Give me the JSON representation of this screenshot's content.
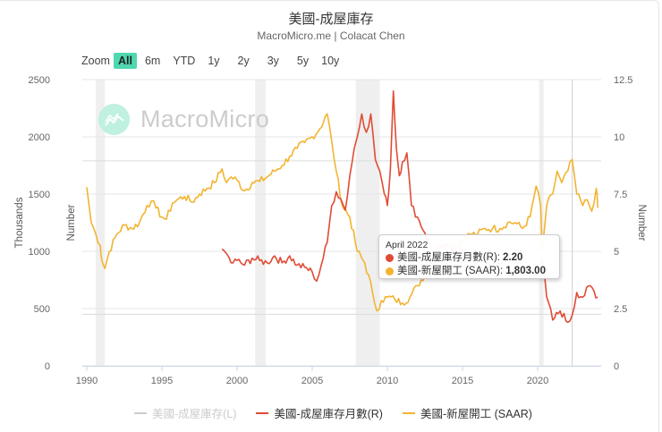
{
  "header": {
    "title": "美國-成屋庫存",
    "subtitle": "MacroMicro.me | Colacat Chen"
  },
  "zoom_bar": {
    "label": "Zoom",
    "buttons": [
      {
        "label": "All",
        "active": true
      },
      {
        "label": "6m",
        "active": false
      },
      {
        "label": "YTD",
        "active": false
      },
      {
        "label": "1y",
        "active": false
      },
      {
        "label": "2y",
        "active": false
      },
      {
        "label": "3y",
        "active": false
      },
      {
        "label": "5y",
        "active": false
      },
      {
        "label": "10y",
        "active": false
      }
    ]
  },
  "watermark": {
    "text": "MacroMicro"
  },
  "tooltip": {
    "date": "April 2022",
    "rows": [
      {
        "label": "美國-成屋庫存月數(R):",
        "value": "2.20",
        "color": "#e04b35"
      },
      {
        "label": "美國-新屋開工 (SAAR):",
        "value": "1,803.00",
        "color": "#f2b431"
      }
    ]
  },
  "legend": [
    {
      "label": "美國-成屋庫存(L)",
      "color": "#cccccc",
      "hidden": true
    },
    {
      "label": "美國-成屋庫存月數(R)",
      "color": "#e04b35",
      "hidden": false
    },
    {
      "label": "美國-新屋開工 (SAAR)",
      "color": "#f2b431",
      "hidden": false
    }
  ],
  "chart_data": {
    "type": "line",
    "title": "美國-成屋庫存",
    "subtitle": "MacroMicro.me | Colacat Chen",
    "xlabel": "",
    "x_ticks": [
      "1990",
      "1995",
      "2000",
      "2005",
      "2010",
      "2015",
      "2020"
    ],
    "xlim": [
      1989.9,
      2024.2
    ],
    "left_axis": {
      "title": "Thousands",
      "ticks": [
        "0",
        "500",
        "1000",
        "1500",
        "2000",
        "2500"
      ],
      "ylim": [
        0,
        2500
      ]
    },
    "right_axis": {
      "title": "Number",
      "ticks": [
        "0",
        "2.5",
        "5",
        "7.5",
        "10",
        "12.5"
      ],
      "ylim": [
        0,
        12.5
      ]
    },
    "inner_axis_title": "Number",
    "recession_bands": [
      [
        1990.6,
        1991.2
      ],
      [
        2001.2,
        2001.9
      ],
      [
        2007.9,
        2009.5
      ],
      [
        2020.1,
        2020.3
      ]
    ],
    "crosshair_x": 2022.3,
    "grid": true,
    "legend_position": "bottom",
    "series": [
      {
        "name": "美國-新屋開工 (SAAR)",
        "axis": "left",
        "color": "#f2b431",
        "x": [
          1990.0,
          1990.3,
          1990.6,
          1990.9,
          1991.0,
          1991.2,
          1991.5,
          1992.0,
          1992.5,
          1993.0,
          1993.5,
          1994.0,
          1994.3,
          1994.6,
          1995.0,
          1995.3,
          1995.7,
          1996.0,
          1996.5,
          1997.0,
          1997.5,
          1998.0,
          1998.5,
          1999.0,
          1999.3,
          1999.6,
          2000.0,
          2000.5,
          2001.0,
          2001.5,
          2002.0,
          2002.5,
          2003.0,
          2003.5,
          2004.0,
          2004.5,
          2005.0,
          2005.5,
          2006.0,
          2006.3,
          2006.6,
          2007.0,
          2007.5,
          2008.0,
          2008.5,
          2009.0,
          2009.3,
          2009.6,
          2010.0,
          2010.5,
          2011.0,
          2011.5,
          2012.0,
          2012.5,
          2013.0,
          2013.5,
          2014.0,
          2014.5,
          2015.0,
          2015.5,
          2016.0,
          2016.5,
          2017.0,
          2017.5,
          2018.0,
          2018.5,
          2019.0,
          2019.5,
          2019.9,
          2020.2,
          2020.3,
          2020.6,
          2021.0,
          2021.3,
          2021.6,
          2022.0,
          2022.3,
          2022.6,
          2023.0,
          2023.3,
          2023.6,
          2023.9,
          2024.0
        ],
        "values": [
          1560,
          1250,
          1150,
          1050,
          920,
          850,
          1000,
          1150,
          1230,
          1200,
          1250,
          1400,
          1440,
          1380,
          1300,
          1280,
          1420,
          1450,
          1480,
          1430,
          1500,
          1550,
          1600,
          1720,
          1600,
          1650,
          1620,
          1530,
          1600,
          1610,
          1650,
          1700,
          1750,
          1830,
          1900,
          1950,
          2000,
          2070,
          2200,
          1960,
          1700,
          1400,
          1300,
          1000,
          900,
          650,
          480,
          570,
          600,
          580,
          550,
          600,
          700,
          800,
          900,
          950,
          1000,
          1050,
          1100,
          1150,
          1150,
          1200,
          1200,
          1200,
          1250,
          1250,
          1200,
          1300,
          1570,
          1400,
          1000,
          1400,
          1500,
          1700,
          1600,
          1700,
          1803,
          1500,
          1400,
          1450,
          1350,
          1550,
          1380
        ]
      },
      {
        "name": "美國-成屋庫存月數(R)",
        "axis": "right",
        "color": "#e04b35",
        "x": [
          1999.0,
          1999.3,
          1999.6,
          2000.0,
          2000.5,
          2001.0,
          2001.5,
          2002.0,
          2002.5,
          2003.0,
          2003.5,
          2004.0,
          2004.5,
          2005.0,
          2005.3,
          2005.6,
          2006.0,
          2006.3,
          2006.6,
          2006.9,
          2007.2,
          2007.5,
          2007.8,
          2008.0,
          2008.3,
          2008.6,
          2008.9,
          2009.2,
          2009.5,
          2009.8,
          2010.0,
          2010.2,
          2010.4,
          2010.6,
          2010.8,
          2011.0,
          2011.3,
          2011.6,
          2012.0,
          2012.5,
          2013.0,
          2013.5,
          2014.0,
          2014.5,
          2015.0,
          2015.5,
          2016.0,
          2016.5,
          2017.0,
          2017.5,
          2018.0,
          2018.5,
          2019.0,
          2019.5,
          2020.0,
          2020.3,
          2020.6,
          2021.0,
          2021.5,
          2022.0,
          2022.3,
          2022.6,
          2023.0,
          2023.5,
          2024.0
        ],
        "values": [
          5.1,
          4.9,
          4.5,
          4.6,
          4.4,
          4.7,
          4.6,
          4.5,
          4.8,
          4.5,
          4.8,
          4.4,
          4.3,
          4.1,
          3.7,
          4.4,
          5.4,
          7.0,
          7.6,
          7.3,
          6.8,
          8.3,
          9.5,
          10.0,
          11.0,
          10.2,
          11.0,
          9.0,
          8.5,
          7.5,
          7.0,
          8.6,
          12.0,
          9.5,
          8.3,
          8.9,
          9.3,
          7.0,
          6.5,
          5.8,
          5.0,
          5.1,
          5.2,
          5.1,
          5.0,
          4.9,
          4.5,
          4.7,
          4.2,
          4.4,
          4.0,
          4.3,
          4.4,
          4.2,
          4.0,
          4.7,
          3.0,
          2.0,
          2.4,
          1.9,
          2.2,
          3.2,
          3.0,
          3.5,
          3.0
        ]
      },
      {
        "name": "美國-成屋庫存(L)",
        "axis": "left",
        "color": "#cccccc",
        "hidden": true,
        "x": [],
        "values": []
      }
    ]
  }
}
